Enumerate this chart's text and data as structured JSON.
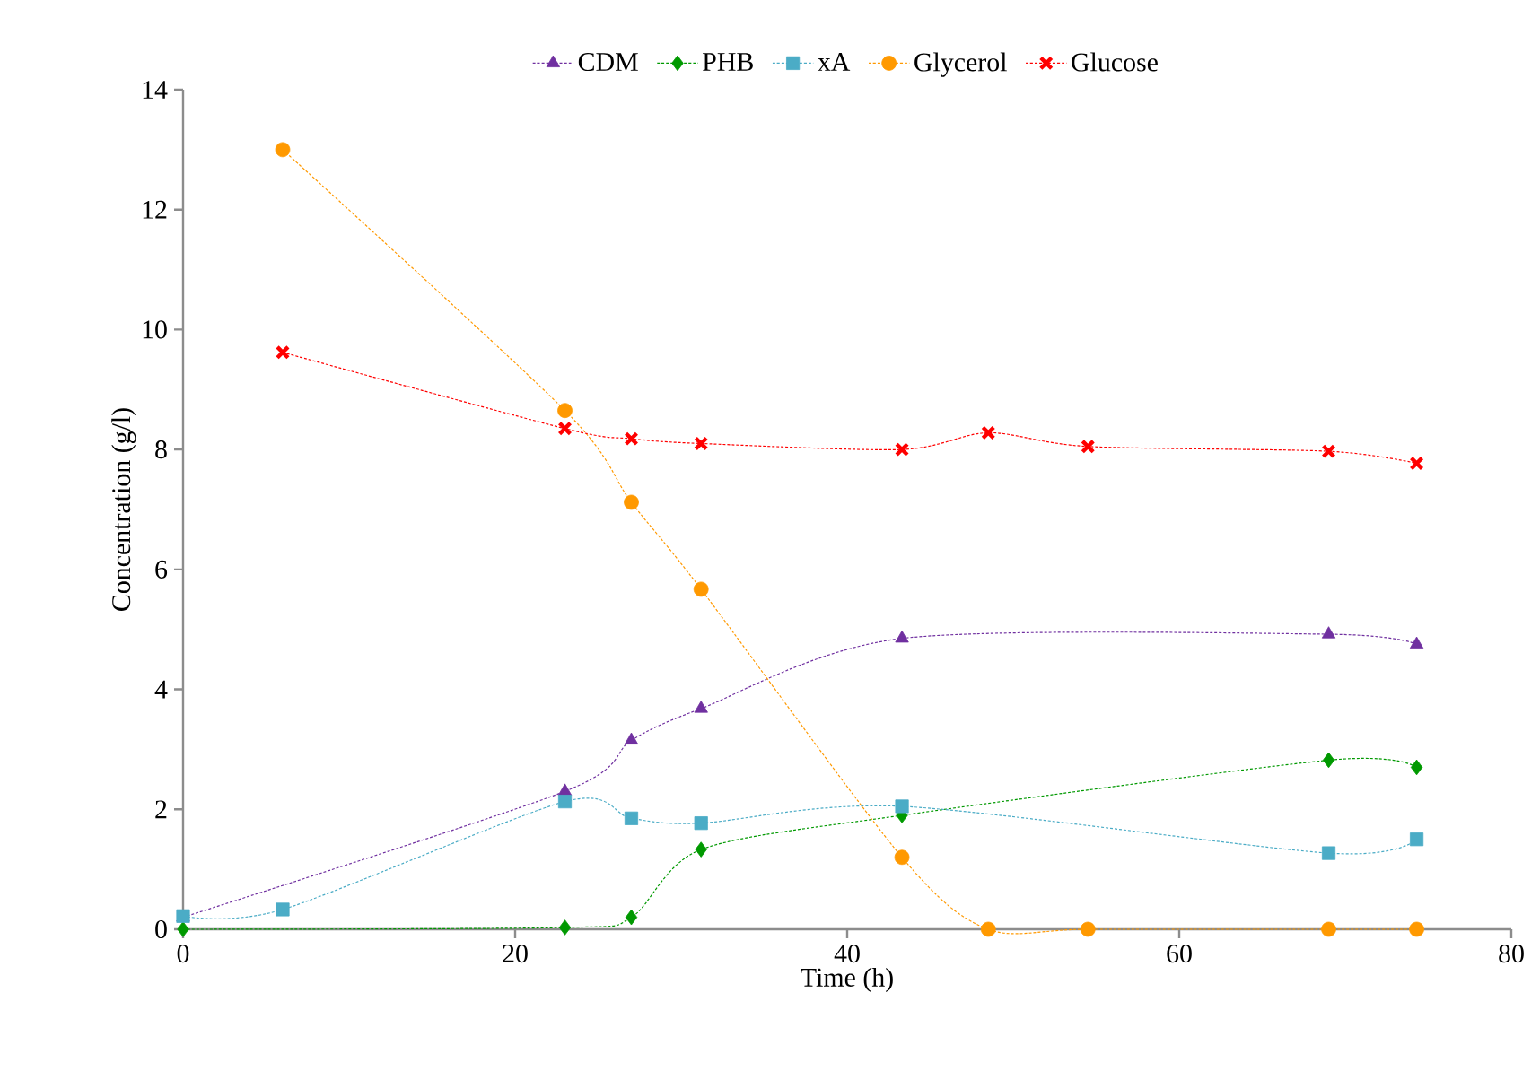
{
  "chart_data": {
    "type": "line",
    "xlabel": "Time (h)",
    "ylabel": "Concentration (g/l)",
    "xlim": [
      0,
      80
    ],
    "xticks": [
      0,
      20,
      40,
      60,
      80
    ],
    "ylim": [
      0,
      14
    ],
    "yticks": [
      0,
      2,
      4,
      6,
      8,
      10,
      12,
      14
    ],
    "grid": false,
    "legend": "top",
    "line_style": "dashed",
    "series": [
      {
        "name": "CDM",
        "color": "#7030a0",
        "marker": "triangle",
        "x": [
          0,
          6,
          23,
          27,
          31.2,
          43.3,
          69,
          74.3
        ],
        "values": [
          0.2,
          null,
          2.3,
          3.15,
          3.68,
          4.85,
          4.92,
          4.75
        ]
      },
      {
        "name": "PHB",
        "color": "#009900",
        "marker": "diamond",
        "x": [
          0,
          23,
          27,
          31.2,
          43.3,
          69,
          74.3
        ],
        "values": [
          0,
          0.03,
          0.2,
          1.33,
          1.9,
          2.82,
          2.7
        ]
      },
      {
        "name": "xA",
        "color": "#4bacc6",
        "marker": "square",
        "x": [
          0,
          6,
          23,
          27,
          31.2,
          43.3,
          69,
          74.3
        ],
        "values": [
          0.22,
          0.33,
          2.13,
          1.85,
          1.77,
          2.05,
          1.27,
          1.5
        ]
      },
      {
        "name": "Glycerol",
        "color": "#ff9900",
        "marker": "circle",
        "x": [
          6,
          23,
          27,
          31.2,
          43.3,
          48.5,
          54.5,
          69,
          74.3
        ],
        "values": [
          13.0,
          8.65,
          7.12,
          5.67,
          1.2,
          0,
          0,
          0,
          0
        ]
      },
      {
        "name": "Glucose",
        "color": "#ff0000",
        "marker": "cross",
        "x": [
          6,
          23,
          27,
          31.2,
          43.3,
          48.5,
          54.5,
          69,
          74.3
        ],
        "values": [
          9.62,
          8.35,
          8.18,
          8.1,
          8.0,
          8.28,
          8.05,
          7.97,
          7.77
        ]
      }
    ]
  }
}
